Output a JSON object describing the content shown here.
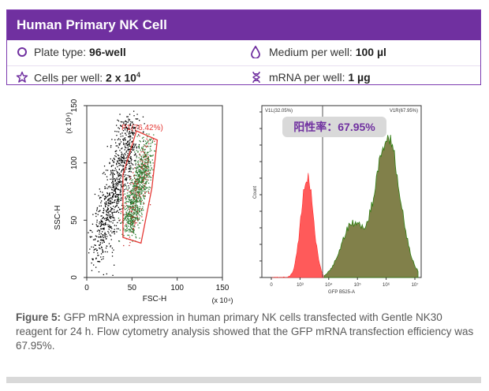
{
  "card": {
    "title": "Human Primary NK Cell",
    "plate_label": "Plate type: ",
    "plate_value": "96-well",
    "medium_label": "Medium per well: ",
    "medium_value": "100 µl",
    "cells_label": "Cells per well: ",
    "cells_value": "2 x 10",
    "cells_exp": "4",
    "mrna_label": "mRNA  per well: ",
    "mrna_value": "1 µg",
    "accent_color": "#7030a0"
  },
  "chart_data": [
    {
      "type": "scatter",
      "title": "",
      "xlabel": "FSC-H",
      "ylabel": "SSC-H",
      "x_multiplier": "(x 10⁴)",
      "y_multiplier": "(x 10⁴)",
      "x_ticks": [
        "0",
        "50",
        "100",
        "150"
      ],
      "y_ticks": [
        "0",
        "50",
        "100",
        "150"
      ],
      "xlim": [
        0,
        150
      ],
      "ylim": [
        0,
        150
      ],
      "gate": {
        "name": "P1",
        "percent": "76.42%",
        "label": "P1(76.42%)",
        "polygon": [
          [
            40,
            35
          ],
          [
            40,
            90
          ],
          [
            55,
            128
          ],
          [
            78,
            120
          ],
          [
            72,
            78
          ],
          [
            60,
            30
          ]
        ]
      },
      "series": [
        {
          "name": "gated",
          "color": "#2e7d32"
        },
        {
          "name": "ungated",
          "color": "#000000"
        },
        {
          "name": "gated-highlight",
          "color": "#c62828"
        }
      ]
    },
    {
      "type": "area",
      "title": "",
      "xlabel": "GFP B525-A",
      "ylabel": "Count",
      "x_ticks": [
        "0",
        "10³",
        "10⁴",
        "10⁵",
        "10⁶",
        "10⁷"
      ],
      "gates": [
        {
          "name": "V1L",
          "label": "V1L(32.05%)",
          "percent": 32.05,
          "color": "#ff5a5a"
        },
        {
          "name": "V1R",
          "label": "V1R(67.95%)",
          "percent": 67.95,
          "color": "#5b6b1a"
        }
      ],
      "annotation": "阳性率：67.95%"
    }
  ],
  "caption": {
    "label": "Figure 5:",
    "text": " GFP mRNA  expression in human primary NK cells transfected with Gentle NK30 reagent for 24 h. Flow cytometry analysis showed that the GFP mRNA transfection efficiency was 67.95%."
  }
}
